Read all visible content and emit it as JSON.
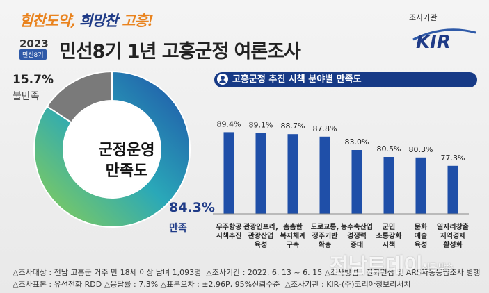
{
  "header": {
    "slogan_part1": "힘찬도약,",
    "slogan_part2": "희망찬",
    "slogan_part3": "고흥!",
    "year": "2023",
    "term_badge": "민선8기",
    "title": "민선8기 1년 고흥군정 여론조사",
    "org_label": "조사기관",
    "org_logo_text": "KIR"
  },
  "donut": {
    "center_line1": "군정운영",
    "center_line2": "만족도",
    "satisfied_pct": "84.3%",
    "satisfied_label": "만족",
    "dissatisfied_pct": "15.7%",
    "dissatisfied_label": "불만족"
  },
  "bar_section_title": "고흥군정 추진 시책 분야별 만족도",
  "footer": {
    "line1_left": "△조사대상 : 전남 고흥군 거주 만 18세 이상 남녀 1,093명",
    "line1_right": "△조사기간 : 2022. 6. 13 ~ 6. 15  △조사방법 : 전화면접 및 ARS자동응답조사 병행",
    "line2_left": "△조사표본 : 유선전화 RDD  △응답률 : 7.3%  △표본오차 : ±2.96P, 95%신뢰수준",
    "line2_right": "△조사기관 : KIR-(주)코리아정보리서치"
  },
  "watermark": {
    "main": "전남트데이",
    "side1": "신문",
    "side2": "방송"
  },
  "chart_data": [
    {
      "type": "pie",
      "categories": [
        "만족",
        "불만족"
      ],
      "values": [
        84.3,
        15.7
      ],
      "colors": [
        "#1f4fa8",
        "#7a7a7a"
      ],
      "gradient": [
        "#8fd14f",
        "#2aa8b8",
        "#1f4fa8"
      ],
      "title": "군정운영 만족도"
    },
    {
      "type": "bar",
      "title": "고흥군정 추진 시책 분야별 만족도",
      "categories": [
        [
          "우주항공",
          "시책추진"
        ],
        [
          "관광인프라,",
          "관광산업",
          "육성"
        ],
        [
          "촘촘한",
          "복지체계",
          "구축"
        ],
        [
          "도로교통,",
          "정주기반",
          "확충"
        ],
        [
          "농수축산업",
          "경쟁력",
          "증대"
        ],
        [
          "군민",
          "소통강화",
          "시책"
        ],
        [
          "문화",
          "예술",
          "육성"
        ],
        [
          "일자리창출",
          "지역경제",
          "활성화"
        ]
      ],
      "values": [
        89.4,
        89.1,
        88.7,
        87.8,
        83.0,
        80.5,
        80.3,
        77.3
      ],
      "value_labels": [
        "89.4%",
        "89.1%",
        "88.7%",
        "87.8%",
        "83.0%",
        "80.5%",
        "80.3%",
        "77.3%"
      ],
      "bar_color": "#1f4fa8",
      "ylim": [
        0,
        100
      ]
    }
  ]
}
